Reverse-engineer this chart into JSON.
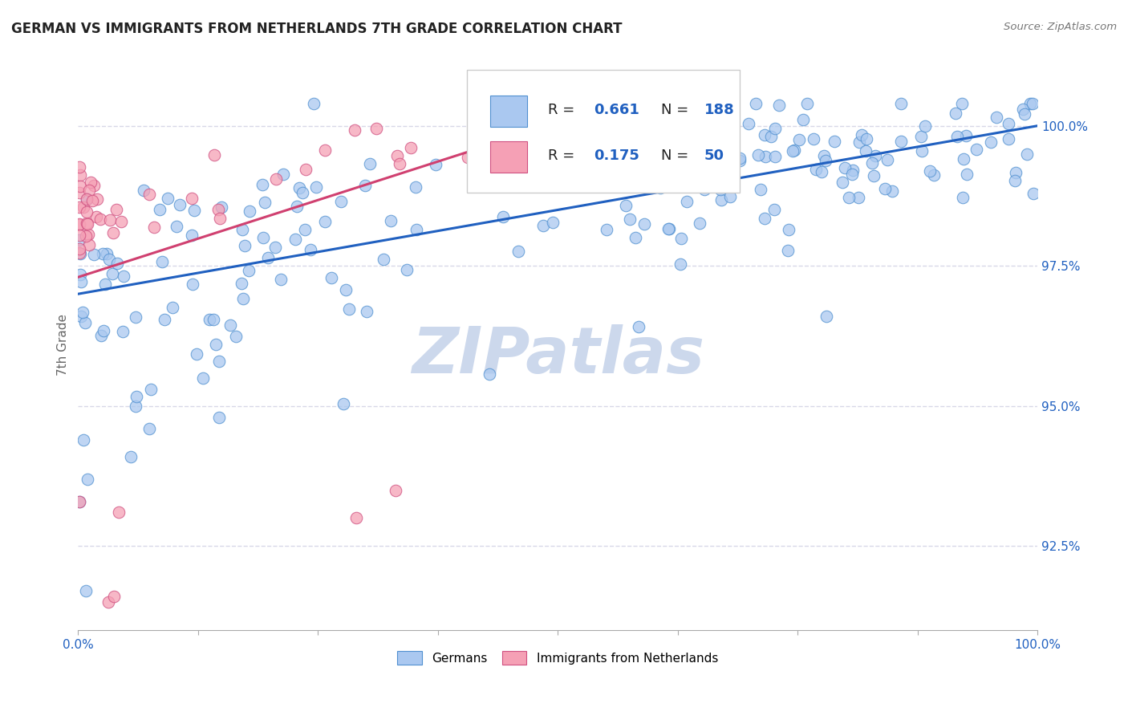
{
  "title": "GERMAN VS IMMIGRANTS FROM NETHERLANDS 7TH GRADE CORRELATION CHART",
  "source": "Source: ZipAtlas.com",
  "ylabel": "7th Grade",
  "x_range": [
    0.0,
    1.0
  ],
  "y_range": [
    91.0,
    101.2
  ],
  "blue_R": 0.661,
  "blue_N": 188,
  "pink_R": 0.175,
  "pink_N": 50,
  "blue_color": "#aac8f0",
  "pink_color": "#f5a0b5",
  "blue_edge_color": "#5090d0",
  "pink_edge_color": "#d05080",
  "blue_line_color": "#2060c0",
  "pink_line_color": "#d04070",
  "watermark_color": "#ccd8ec",
  "background_color": "#ffffff",
  "grid_color": "#d8d8e8",
  "y_tick_positions": [
    92.5,
    95.0,
    97.5,
    100.0
  ],
  "y_tick_labels": [
    "92.5%",
    "95.0%",
    "97.5%",
    "100.0%"
  ],
  "title_color": "#222222",
  "source_color": "#777777",
  "tick_color": "#666666"
}
